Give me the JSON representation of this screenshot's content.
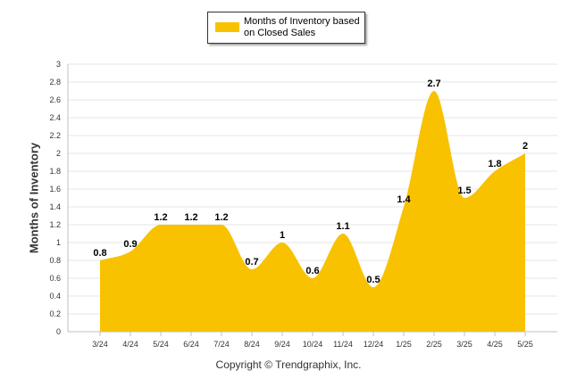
{
  "chart_data": {
    "type": "area",
    "categories": [
      "3/24",
      "4/24",
      "5/24",
      "6/24",
      "7/24",
      "8/24",
      "9/24",
      "10/24",
      "11/24",
      "12/24",
      "1/25",
      "2/25",
      "3/25",
      "4/25",
      "5/25"
    ],
    "series": [
      {
        "name": "Months of Inventory based on Closed Sales",
        "values": [
          0.8,
          0.9,
          1.2,
          1.2,
          1.2,
          0.7,
          1,
          0.6,
          1.1,
          0.5,
          1.4,
          2.7,
          1.5,
          1.8,
          2
        ],
        "labels": [
          "0.8",
          "0.9",
          "1.2",
          "1.2",
          "1.2",
          "0.7",
          "1",
          "0.6",
          "1.1",
          "0.5",
          "1.4",
          "2.7",
          "1.5",
          "1.8",
          "2"
        ]
      }
    ],
    "ylabel": "Months of Inventory",
    "ylim": [
      0,
      3
    ],
    "yticks": [
      "0",
      "0.2",
      "0.4",
      "0.6",
      "0.8",
      "1",
      "1.2",
      "1.4",
      "1.6",
      "1.8",
      "2",
      "2.2",
      "2.4",
      "2.6",
      "2.8",
      "3"
    ],
    "grid": true,
    "legend_position": "top-center"
  },
  "legend": {
    "label": "Months of Inventory based on Closed Sales"
  },
  "colors": {
    "series": "#f8c200",
    "grid": "#e6e6e6",
    "axis": "#c0c0c0"
  },
  "footer": {
    "copyright": "Copyright © Trendgraphix, Inc."
  }
}
